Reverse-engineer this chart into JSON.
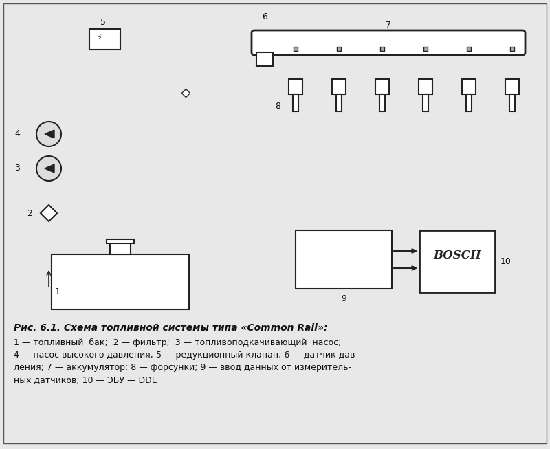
{
  "title": "Рис. 6.1. Схема топливной системы типа «Common Rail»:",
  "caption_lines": [
    "1 — топливный  бак;  2 — фильтр;  3 — топливоподкачивающий  насос;",
    "4 — насос высокого давления; 5 — редукционный клапан; 6 — датчик дав-",
    "ления; 7 — аккумулятор; 8 — форсунки; 9 — ввод данных от измеритель-",
    "ных датчиков; 10 — ЭБУ — DDE"
  ],
  "bg_color": "#e8e8e8",
  "border_color": "#333333",
  "line_color": "#222222",
  "bosch_label": "BOSCH",
  "injector_count": 6,
  "num_labels": [
    "1",
    "2",
    "3",
    "4",
    "5",
    "6",
    "7",
    "8",
    "9",
    "10"
  ]
}
